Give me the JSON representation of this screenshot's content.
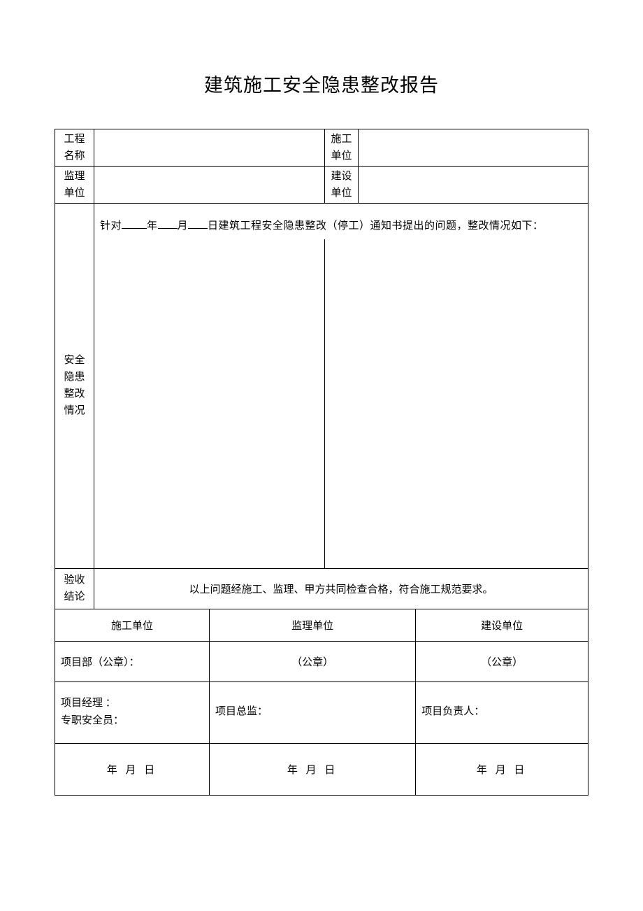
{
  "title": "建筑施工安全隐患整改报告",
  "header_rows": {
    "project_name_label": "工程名称",
    "project_name_value": "",
    "construction_unit_label": "施工单位",
    "construction_unit_value": "",
    "supervision_unit_label": "监理单位",
    "supervision_unit_value": "",
    "owner_unit_label": "建设单位",
    "owner_unit_value": ""
  },
  "hazard_section": {
    "row_label": "安全隐患整改情况",
    "intro_prefix": "针对",
    "intro_year_suffix": "年",
    "intro_month_suffix": "月",
    "intro_day_suffix": "日建筑工程安全隐患整改（停工）通知书提出的问题，整改情况如下：",
    "left_content": "",
    "right_content": ""
  },
  "conclusion": {
    "row_label": "验收结论",
    "text": "以上问题经施工、监理、甲方共同检查合格，符合施工规范要求。"
  },
  "signatures": {
    "col1_header": "施工单位",
    "col2_header": "监理单位",
    "col3_header": "建设单位",
    "col1_seal": "项目部（公章）：",
    "col2_seal": "（公章）",
    "col3_seal": "（公章）",
    "col1_role1": "项目经理 ：",
    "col1_role2": "专职安全员：",
    "col2_role": "项目总监：",
    "col3_role": "项目负责人：",
    "date_text": "年 月 日"
  },
  "styling": {
    "page_bg": "#ffffff",
    "border_color": "#000000",
    "title_fontsize": 27,
    "body_fontsize": 15
  }
}
